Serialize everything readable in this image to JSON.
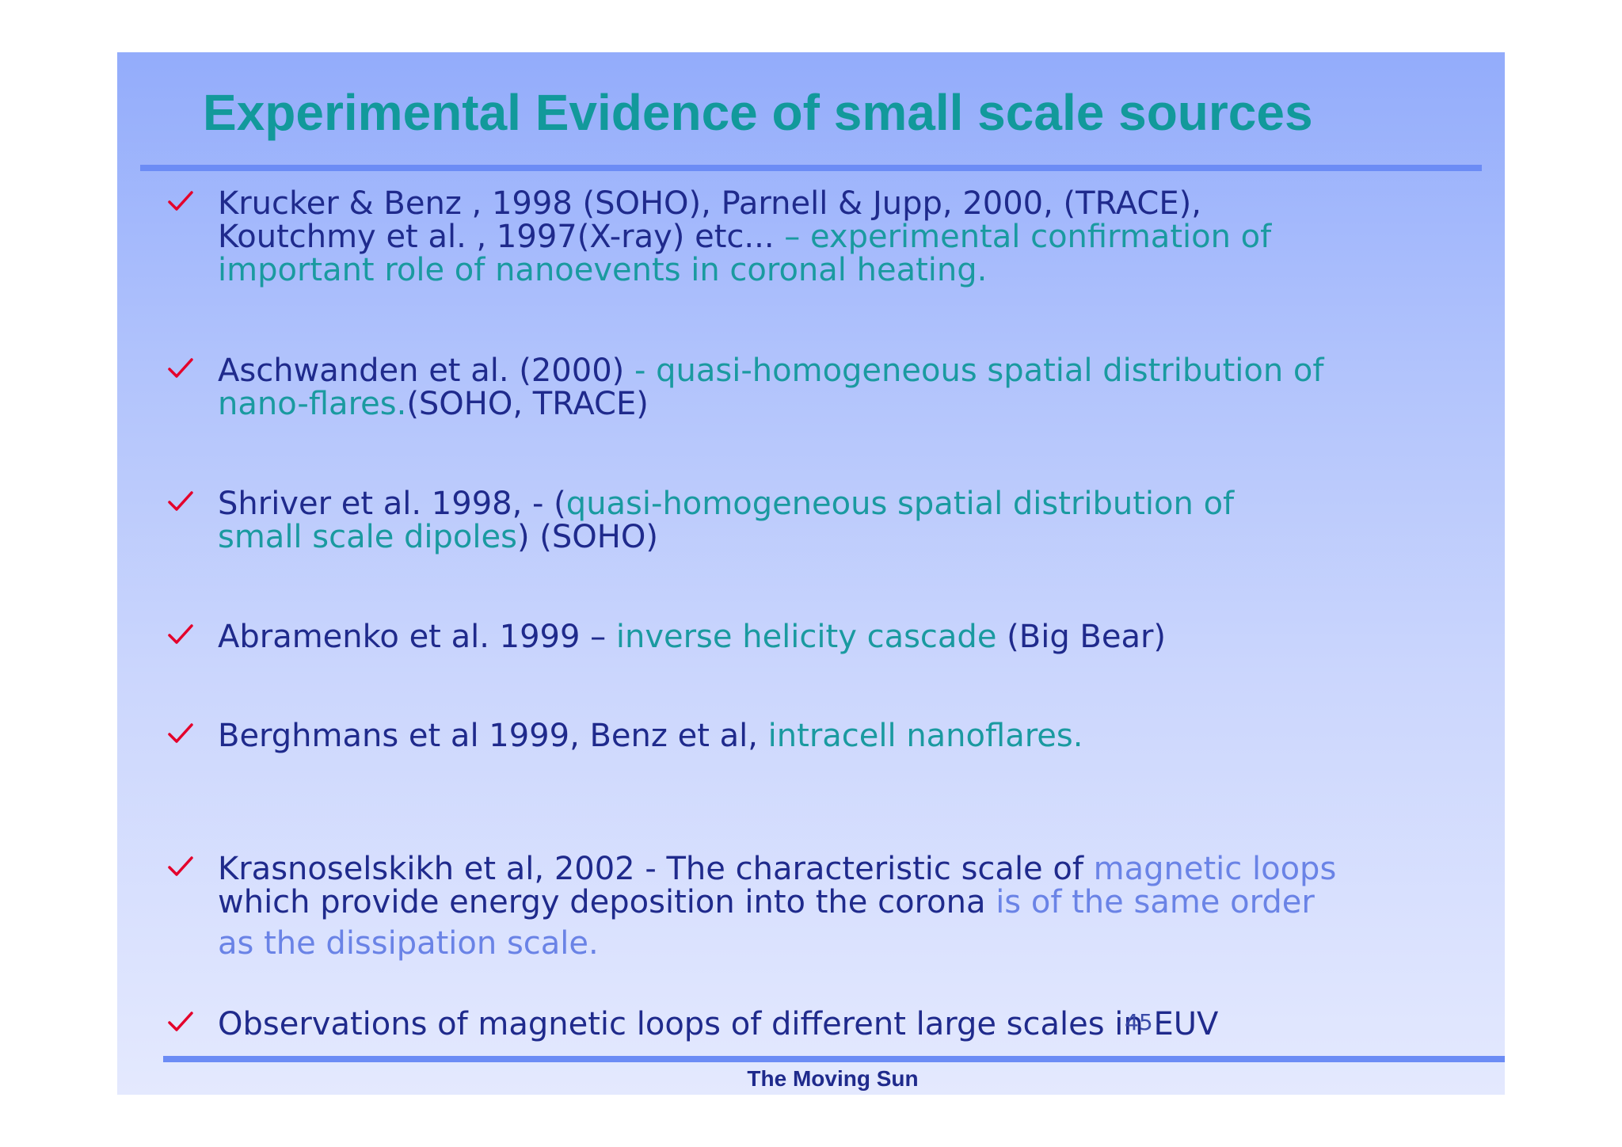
{
  "slide": {
    "title": "Experimental Evidence of small scale sources",
    "footer": "The Moving Sun",
    "page_number": "45",
    "check_color": "#e4002b",
    "title_color": "#12999b",
    "rule_color": "#6c8cf5"
  },
  "bullets": [
    {
      "line1_a": "Krucker & Benz , 1998 (SOHO), Parnell & Jupp, 2000, (TRACE),",
      "line2_a": "Koutchmy et al. , 1997(X-ray) etc... ",
      "line2_b": "– experimental confirmation of",
      "line3_a": "important role of nanoevents in coronal heating."
    },
    {
      "line1_a": "Aschwanden et al. (2000) ",
      "line1_b": "- quasi-homogeneous spatial distribution of",
      "line2_a": "nano-flares.",
      "line2_b": "(SOHO, TRACE)"
    },
    {
      "line1_a": " Shriver  et al. 1998, - (",
      "line1_b": "quasi-homogeneous spatial distribution of",
      "line2_a": "small scale dipoles",
      "line2_b": ") (SOHO)"
    },
    {
      "line1_a": " Abramenko et al. 1999 – ",
      "line1_b": "inverse helicity cascade",
      "line1_c": " (Big Bear)"
    },
    {
      "line1_a": "Berghmans et al 1999, Benz et al, ",
      "line1_b": "intracell nanoflares",
      "line1_c": "."
    },
    {
      "line1_a": "Krasnoselskikh et al, 2002 - The characteristic scale of ",
      "line1_b": "magnetic loops",
      "line2_a": "which provide energy deposition into the corona ",
      "line2_b": "is of the same order",
      "line3_a": "as the dissipation scale."
    },
    {
      "line1_a": "Observations of magnetic loops of different large scales in EUV"
    }
  ]
}
